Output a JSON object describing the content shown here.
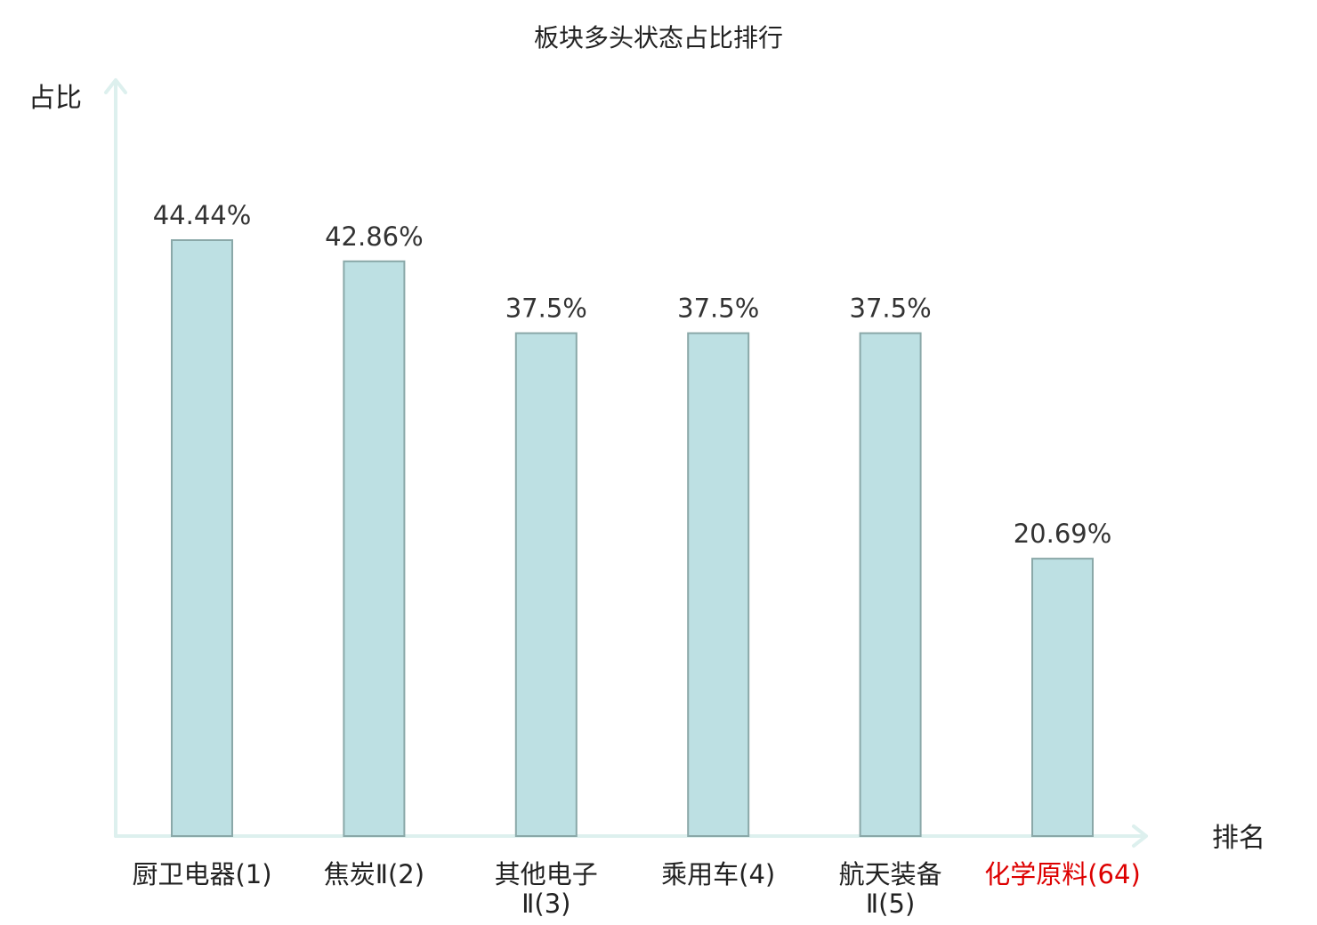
{
  "chart_data": {
    "type": "bar",
    "title": "板块多头状态占比排行",
    "ylabel": "占比",
    "xlabel": "排名",
    "ylim": [
      0,
      50
    ],
    "categories": [
      {
        "name": "厨卫电器",
        "rank": "(1)",
        "label_lines": [
          "厨卫电器(1)"
        ],
        "highlight": false
      },
      {
        "name": "焦炭Ⅱ",
        "rank": "(2)",
        "label_lines": [
          "焦炭Ⅱ(2)"
        ],
        "highlight": false
      },
      {
        "name": "其他电子Ⅱ",
        "rank": "(3)",
        "label_lines": [
          "其他电子",
          "Ⅱ(3)"
        ],
        "highlight": false
      },
      {
        "name": "乘用车",
        "rank": "(4)",
        "label_lines": [
          "乘用车(4)"
        ],
        "highlight": false
      },
      {
        "name": "航天装备Ⅱ",
        "rank": "(5)",
        "label_lines": [
          "航天装备",
          "Ⅱ(5)"
        ],
        "highlight": false
      },
      {
        "name": "化学原料",
        "rank": "(64)",
        "label_lines": [
          "化学原料(64)"
        ],
        "highlight": true
      }
    ],
    "values": [
      44.44,
      42.86,
      37.5,
      37.5,
      37.5,
      20.69
    ],
    "value_labels": [
      "44.44%",
      "42.86%",
      "37.5%",
      "37.5%",
      "37.5%",
      "20.69%"
    ],
    "grid": false,
    "legend": "none",
    "colors": {
      "bar_fill": "#bde0e3",
      "bar_stroke": "#8aa8a8",
      "axis": "#ddf0ee",
      "label": "#222222",
      "highlight": "#dd0000"
    }
  }
}
